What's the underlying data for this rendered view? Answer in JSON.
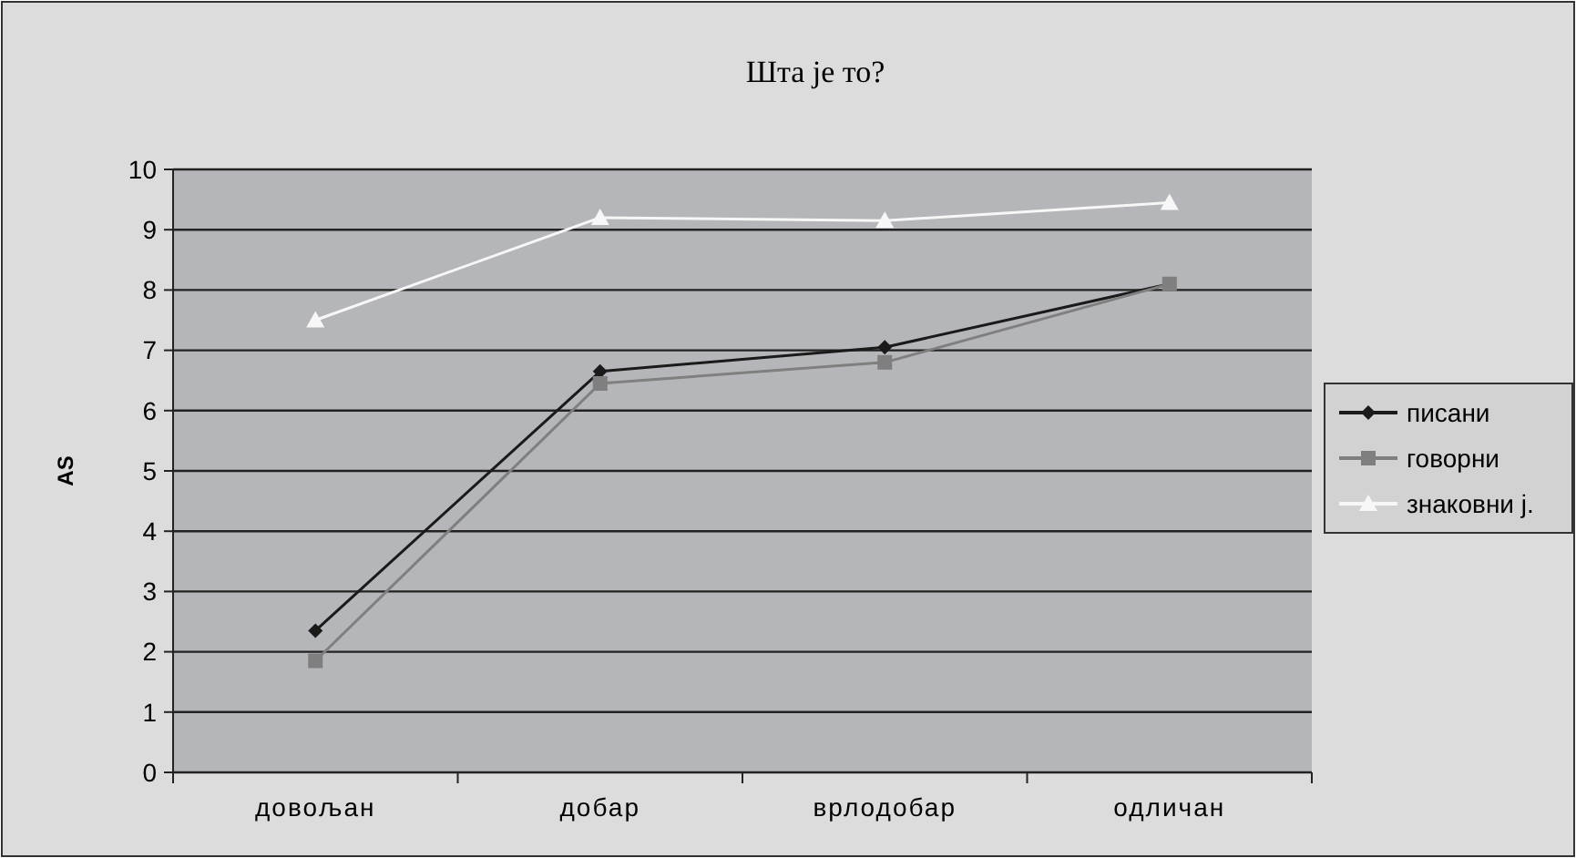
{
  "chart_data": {
    "type": "line",
    "title": "Шта је то?",
    "ylabel": "AS",
    "categories": [
      "довољан",
      "добар",
      "врлодобар",
      "одличан"
    ],
    "series": [
      {
        "name": "писани",
        "color": "#1a1a1a",
        "marker": "diamond",
        "values": [
          2.35,
          6.65,
          7.05,
          8.1
        ]
      },
      {
        "name": "говорни",
        "color": "#7f7f7f",
        "marker": "square",
        "values": [
          1.85,
          6.45,
          6.8,
          8.1
        ]
      },
      {
        "name": "знаковни j.",
        "color": "#f7f7f7",
        "marker": "triangle",
        "values": [
          7.5,
          9.2,
          9.15,
          9.45
        ]
      }
    ],
    "ylim": [
      0,
      10
    ],
    "yticks": [
      0,
      1,
      2,
      3,
      4,
      5,
      6,
      7,
      8,
      9,
      10
    ],
    "grid": "y",
    "legend": "right"
  }
}
